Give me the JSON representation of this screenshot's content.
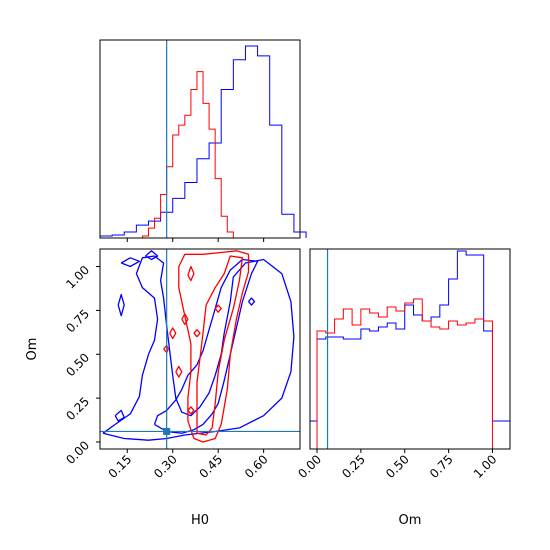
{
  "chart_data": [
    {
      "type": "histogram",
      "panel": "H0-marginal",
      "xlim": [
        0.06,
        0.72
      ],
      "truth_x": 0.28,
      "series": [
        {
          "color": "#0000ff",
          "bin_edges": [
            0.06,
            0.1,
            0.14,
            0.18,
            0.22,
            0.26,
            0.3,
            0.34,
            0.38,
            0.42,
            0.46,
            0.5,
            0.54,
            0.58,
            0.62,
            0.66,
            0.7,
            0.74
          ],
          "counts": [
            0.01,
            0.015,
            0.03,
            0.065,
            0.085,
            0.13,
            0.2,
            0.28,
            0.4,
            0.48,
            0.75,
            0.9,
            0.97,
            0.92,
            0.57,
            0.12,
            0.03
          ]
        },
        {
          "color": "#ff0000",
          "bin_edges": [
            0.2,
            0.22,
            0.24,
            0.26,
            0.28,
            0.3,
            0.32,
            0.34,
            0.36,
            0.38,
            0.4,
            0.42,
            0.44,
            0.46,
            0.48,
            0.5
          ],
          "counts": [
            0.01,
            0.05,
            0.1,
            0.22,
            0.36,
            0.52,
            0.57,
            0.62,
            0.75,
            0.84,
            0.68,
            0.55,
            0.3,
            0.11,
            0.03
          ]
        }
      ]
    },
    {
      "type": "contour",
      "panel": "H0-Om-joint",
      "xlabel": "H0",
      "ylabel": "Om",
      "xlim": [
        0.06,
        0.72
      ],
      "ylim": [
        -0.04,
        1.1
      ],
      "xticks": [
        "0.15",
        "0.30",
        "0.45",
        "0.60"
      ],
      "xtick_values": [
        0.15,
        0.3,
        0.45,
        0.6
      ],
      "yticks": [
        "0.00",
        "0.25",
        "0.50",
        "0.75",
        "1.00"
      ],
      "ytick_values": [
        0.0,
        0.25,
        0.5,
        0.75,
        1.0
      ],
      "truth": [
        0.28,
        0.06
      ],
      "series": [
        {
          "color": "#0000ff",
          "contours": [
            [
              [
                0.07,
                0.05
              ],
              [
                0.14,
                0.02
              ],
              [
                0.22,
                0.01
              ],
              [
                0.28,
                0.02
              ],
              [
                0.34,
                0.04
              ],
              [
                0.44,
                0.06
              ],
              [
                0.52,
                0.08
              ],
              [
                0.6,
                0.15
              ],
              [
                0.66,
                0.25
              ],
              [
                0.69,
                0.4
              ],
              [
                0.7,
                0.6
              ],
              [
                0.69,
                0.8
              ],
              [
                0.66,
                0.96
              ],
              [
                0.6,
                1.04
              ],
              [
                0.54,
                1.02
              ],
              [
                0.5,
                0.94
              ],
              [
                0.49,
                0.8
              ],
              [
                0.47,
                0.62
              ],
              [
                0.46,
                0.5
              ],
              [
                0.44,
                0.38
              ],
              [
                0.42,
                0.28
              ],
              [
                0.39,
                0.2
              ],
              [
                0.36,
                0.15
              ],
              [
                0.33,
                0.17
              ],
              [
                0.31,
                0.25
              ],
              [
                0.3,
                0.38
              ],
              [
                0.29,
                0.52
              ],
              [
                0.28,
                0.66
              ],
              [
                0.27,
                0.82
              ],
              [
                0.26,
                0.92
              ],
              [
                0.27,
                1.02
              ],
              [
                0.24,
                1.06
              ],
              [
                0.2,
                1.05
              ],
              [
                0.18,
                0.96
              ],
              [
                0.2,
                0.88
              ],
              [
                0.24,
                0.82
              ],
              [
                0.25,
                0.7
              ],
              [
                0.24,
                0.58
              ],
              [
                0.22,
                0.5
              ],
              [
                0.2,
                0.38
              ],
              [
                0.19,
                0.26
              ],
              [
                0.16,
                0.16
              ],
              [
                0.11,
                0.1
              ],
              [
                0.07,
                0.05
              ]
            ],
            [
              [
                0.24,
                0.1
              ],
              [
                0.28,
                0.06
              ],
              [
                0.33,
                0.05
              ],
              [
                0.37,
                0.07
              ],
              [
                0.4,
                0.1
              ],
              [
                0.43,
                0.16
              ],
              [
                0.45,
                0.22
              ],
              [
                0.47,
                0.35
              ],
              [
                0.49,
                0.5
              ],
              [
                0.51,
                0.65
              ],
              [
                0.53,
                0.8
              ],
              [
                0.56,
                0.96
              ],
              [
                0.58,
                1.03
              ],
              [
                0.53,
                1.04
              ],
              [
                0.49,
                0.98
              ],
              [
                0.46,
                0.88
              ],
              [
                0.44,
                0.76
              ],
              [
                0.42,
                0.64
              ],
              [
                0.4,
                0.52
              ],
              [
                0.38,
                0.44
              ],
              [
                0.35,
                0.38
              ],
              [
                0.33,
                0.3
              ],
              [
                0.31,
                0.24
              ],
              [
                0.28,
                0.18
              ],
              [
                0.25,
                0.15
              ],
              [
                0.24,
                0.1
              ]
            ],
            [
              [
                0.12,
                0.78
              ],
              [
                0.13,
                0.84
              ],
              [
                0.14,
                0.78
              ],
              [
                0.13,
                0.72
              ],
              [
                0.12,
                0.78
              ]
            ],
            [
              [
                0.11,
                0.15
              ],
              [
                0.13,
                0.18
              ],
              [
                0.14,
                0.14
              ],
              [
                0.12,
                0.12
              ],
              [
                0.11,
                0.15
              ]
            ],
            [
              [
                0.13,
                1.02
              ],
              [
                0.16,
                1.05
              ],
              [
                0.19,
                1.03
              ],
              [
                0.16,
                1.0
              ],
              [
                0.13,
                1.02
              ]
            ],
            [
              [
                0.21,
                1.06
              ],
              [
                0.23,
                1.09
              ],
              [
                0.25,
                1.06
              ],
              [
                0.23,
                1.04
              ],
              [
                0.21,
                1.06
              ]
            ],
            [
              [
                0.55,
                0.8
              ],
              [
                0.56,
                0.82
              ],
              [
                0.57,
                0.8
              ],
              [
                0.56,
                0.78
              ],
              [
                0.55,
                0.8
              ]
            ]
          ]
        },
        {
          "color": "#ff0000",
          "contours": [
            [
              [
                0.37,
                0.02
              ],
              [
                0.4,
                0.0
              ],
              [
                0.44,
                0.02
              ],
              [
                0.46,
                0.1
              ],
              [
                0.48,
                0.3
              ],
              [
                0.49,
                0.5
              ],
              [
                0.51,
                0.7
              ],
              [
                0.53,
                0.85
              ],
              [
                0.55,
                0.97
              ],
              [
                0.55,
                1.07
              ],
              [
                0.51,
                1.09
              ],
              [
                0.46,
                1.08
              ],
              [
                0.4,
                1.07
              ],
              [
                0.34,
                1.07
              ],
              [
                0.32,
                1.0
              ],
              [
                0.32,
                0.88
              ],
              [
                0.34,
                0.72
              ],
              [
                0.36,
                0.56
              ],
              [
                0.36,
                0.4
              ],
              [
                0.35,
                0.25
              ],
              [
                0.35,
                0.12
              ],
              [
                0.37,
                0.02
              ]
            ],
            [
              [
                0.38,
                0.05
              ],
              [
                0.41,
                0.04
              ],
              [
                0.43,
                0.08
              ],
              [
                0.44,
                0.22
              ],
              [
                0.45,
                0.4
              ],
              [
                0.47,
                0.58
              ],
              [
                0.5,
                0.76
              ],
              [
                0.52,
                0.92
              ],
              [
                0.53,
                1.05
              ],
              [
                0.49,
                1.06
              ],
              [
                0.47,
                0.96
              ],
              [
                0.44,
                0.88
              ],
              [
                0.41,
                0.78
              ],
              [
                0.4,
                0.62
              ],
              [
                0.39,
                0.48
              ],
              [
                0.38,
                0.34
              ],
              [
                0.38,
                0.2
              ],
              [
                0.38,
                0.05
              ]
            ],
            [
              [
                0.35,
                0.95
              ],
              [
                0.36,
                1.0
              ],
              [
                0.37,
                0.96
              ],
              [
                0.36,
                0.92
              ],
              [
                0.35,
                0.95
              ]
            ],
            [
              [
                0.29,
                0.62
              ],
              [
                0.3,
                0.65
              ],
              [
                0.31,
                0.62
              ],
              [
                0.3,
                0.59
              ],
              [
                0.29,
                0.62
              ]
            ],
            [
              [
                0.33,
                0.7
              ],
              [
                0.34,
                0.73
              ],
              [
                0.35,
                0.7
              ],
              [
                0.34,
                0.67
              ],
              [
                0.33,
                0.7
              ]
            ],
            [
              [
                0.27,
                0.53
              ],
              [
                0.28,
                0.55
              ],
              [
                0.285,
                0.53
              ],
              [
                0.28,
                0.51
              ],
              [
                0.27,
                0.53
              ]
            ],
            [
              [
                0.31,
                0.4
              ],
              [
                0.32,
                0.43
              ],
              [
                0.33,
                0.4
              ],
              [
                0.32,
                0.37
              ],
              [
                0.31,
                0.4
              ]
            ],
            [
              [
                0.37,
                0.62
              ],
              [
                0.38,
                0.64
              ],
              [
                0.39,
                0.62
              ],
              [
                0.38,
                0.6
              ],
              [
                0.37,
                0.62
              ]
            ],
            [
              [
                0.35,
                0.18
              ],
              [
                0.36,
                0.2
              ],
              [
                0.37,
                0.18
              ],
              [
                0.36,
                0.16
              ],
              [
                0.35,
                0.18
              ]
            ],
            [
              [
                0.44,
                0.76
              ],
              [
                0.45,
                0.78
              ],
              [
                0.46,
                0.76
              ],
              [
                0.45,
                0.74
              ],
              [
                0.44,
                0.76
              ]
            ]
          ]
        }
      ]
    },
    {
      "type": "histogram",
      "panel": "Om-marginal",
      "xlabel": "Om",
      "xlim": [
        -0.04,
        1.1
      ],
      "xticks": [
        "0.00",
        "0.25",
        "0.50",
        "0.75",
        "1.00"
      ],
      "xtick_values": [
        0.0,
        0.25,
        0.5,
        0.75,
        1.0
      ],
      "truth_x": 0.06,
      "series": [
        {
          "color": "#0000ff",
          "bin_edges": [
            -0.04,
            0.0,
            0.05,
            0.1,
            0.15,
            0.2,
            0.25,
            0.3,
            0.35,
            0.4,
            0.45,
            0.5,
            0.55,
            0.6,
            0.65,
            0.7,
            0.75,
            0.8,
            0.85,
            0.9,
            0.95,
            1.0,
            1.05,
            1.1
          ],
          "counts": [
            0.14,
            0.55,
            0.56,
            0.56,
            0.55,
            0.55,
            0.6,
            0.59,
            0.61,
            0.63,
            0.6,
            0.72,
            0.67,
            0.64,
            0.66,
            0.72,
            0.85,
            0.99,
            0.97,
            0.97,
            0.59,
            0.14,
            0.14
          ]
        },
        {
          "color": "#ff0000",
          "bin_edges": [
            0.0,
            0.05,
            0.1,
            0.15,
            0.2,
            0.25,
            0.3,
            0.35,
            0.4,
            0.45,
            0.5,
            0.55,
            0.6,
            0.65,
            0.7,
            0.75,
            0.8,
            0.85,
            0.9,
            0.95,
            1.0
          ],
          "counts": [
            0.59,
            0.58,
            0.65,
            0.7,
            0.62,
            0.7,
            0.68,
            0.66,
            0.71,
            0.69,
            0.73,
            0.75,
            0.64,
            0.61,
            0.6,
            0.64,
            0.62,
            0.63,
            0.65,
            0.64
          ]
        }
      ]
    }
  ]
}
